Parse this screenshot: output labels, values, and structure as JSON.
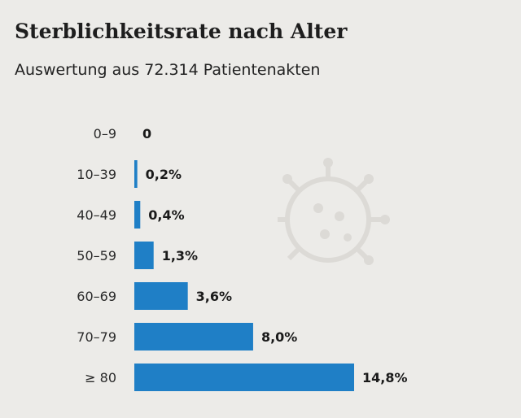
{
  "title": "Sterblichkeitsrate nach Alter",
  "subtitle": "Auswertung aus 72.314 Patientenakten",
  "colors": {
    "bar": "#1f7fc6",
    "background": "#ecebe8",
    "watermark": "#dcdad6"
  },
  "watermark_icon": "virus-icon",
  "chart_data": {
    "type": "bar",
    "orientation": "horizontal",
    "title": "Sterblichkeitsrate nach Alter",
    "subtitle": "Auswertung aus 72.314 Patientenakten",
    "categories": [
      "0–9",
      "10–39",
      "40–49",
      "50–59",
      "60–69",
      "70–79",
      "≥ 80"
    ],
    "values": [
      0,
      0.2,
      0.4,
      1.3,
      3.6,
      8.0,
      14.8
    ],
    "value_labels": [
      "0",
      "0,2%",
      "0,4%",
      "1,3%",
      "3,6%",
      "8,0%",
      "14,8%"
    ],
    "unit": "%",
    "xlim": [
      0,
      14.8
    ],
    "grid": false,
    "legend": "none"
  }
}
